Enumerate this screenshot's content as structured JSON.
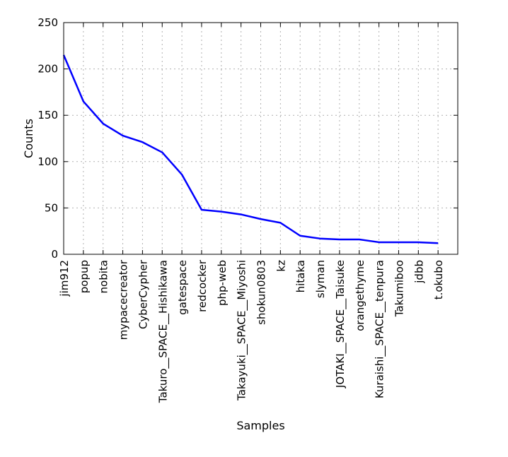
{
  "chart_data": {
    "type": "line",
    "title": "",
    "xlabel": "Samples",
    "ylabel": "Counts",
    "ylim": [
      0,
      250
    ],
    "yticks": [
      0,
      50,
      100,
      150,
      200,
      250
    ],
    "grid": true,
    "legend": "none",
    "categories": [
      "jim912",
      "popup",
      "nobita",
      "mypacecreator",
      "CyberCypher",
      "Takuro__SPACE__Hishikawa",
      "gatespace",
      "redcocker",
      "php-web",
      "Takayuki__SPACE__Miyoshi",
      "shokun0803",
      "kz",
      "hitaka",
      "slyman",
      "JOTAKI__SPACE__Taisuke",
      "orangethyme",
      "Kuraishi__SPACE__tenpura",
      "Takumiboo",
      "jdbb",
      "t.okubo"
    ],
    "series": [
      {
        "values": [
          215,
          165,
          141,
          128,
          121,
          110,
          86,
          48,
          46,
          43,
          38,
          34,
          20,
          17,
          16,
          16,
          13,
          13,
          13,
          12
        ],
        "color": "#0000ff"
      }
    ]
  }
}
